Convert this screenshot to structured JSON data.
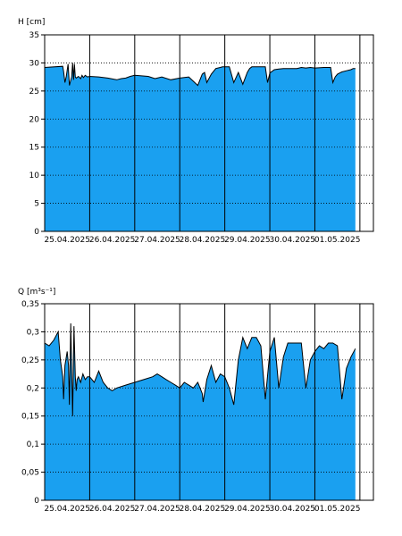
{
  "chart_data": [
    {
      "type": "area",
      "ylabel": "H [cm]",
      "ylim": [
        0,
        35
      ],
      "yticks": [
        0,
        5,
        10,
        15,
        20,
        25,
        30,
        35
      ],
      "ytick_labels": [
        "0",
        "5",
        "10",
        "15",
        "20",
        "25",
        "30",
        "35"
      ],
      "xlim": [
        0,
        7.3
      ],
      "xtick_labels": [
        "25.04.2025",
        "26.04.2025",
        "27.04.2025",
        "28.04.2025",
        "29.04.2025",
        "30.04.2025",
        "01.05.2025"
      ],
      "grid": true,
      "fill_color": "#1aa0f0",
      "x": [
        0,
        0.4,
        0.42,
        0.45,
        0.48,
        0.52,
        0.55,
        0.6,
        0.62,
        0.64,
        0.66,
        0.68,
        0.7,
        0.75,
        0.8,
        0.83,
        0.86,
        0.9,
        0.95,
        1.0,
        1.2,
        1.4,
        1.6,
        1.7,
        1.8,
        1.9,
        2.0,
        2.3,
        2.45,
        2.6,
        2.8,
        3.0,
        3.2,
        3.4,
        3.5,
        3.55,
        3.6,
        3.7,
        3.8,
        3.9,
        3.95,
        4.0,
        4.1,
        4.2,
        4.3,
        4.4,
        4.5,
        4.55,
        4.6,
        4.7,
        4.8,
        4.9,
        4.95,
        5.0,
        5.1,
        5.2,
        5.3,
        5.4,
        5.45,
        5.5,
        5.6,
        5.7,
        5.8,
        5.9,
        6.0,
        6.2,
        6.35,
        6.4,
        6.45,
        6.5,
        6.6,
        6.7,
        6.8,
        6.85,
        6.9
      ],
      "values": [
        29.2,
        29.4,
        28.5,
        26.5,
        27.6,
        29.8,
        26,
        27.5,
        30,
        27,
        29.8,
        27.5,
        27.3,
        27.6,
        27.2,
        27.8,
        27.4,
        27.8,
        27.5,
        27.6,
        27.5,
        27.3,
        27.0,
        27.2,
        27.3,
        27.6,
        27.8,
        27.6,
        27.2,
        27.5,
        27.0,
        27.3,
        27.5,
        26.0,
        28.0,
        28.3,
        26.5,
        28.0,
        29.0,
        29.2,
        29.3,
        29.3,
        29.3,
        26.5,
        28.3,
        26.2,
        28.3,
        29.0,
        29.3,
        29.3,
        29.3,
        29.3,
        26.5,
        28.2,
        28.8,
        28.9,
        29.0,
        29.0,
        29.0,
        29.0,
        29.0,
        29.2,
        29.1,
        29.2,
        29.1,
        29.2,
        29.2,
        26.5,
        27.5,
        28.0,
        28.4,
        28.6,
        28.8,
        29.0,
        29.0
      ]
    },
    {
      "type": "area",
      "ylabel": "Q [m³s⁻¹]",
      "ylim": [
        0,
        0.35
      ],
      "yticks": [
        0,
        0.05,
        0.1,
        0.15,
        0.2,
        0.25,
        0.3,
        0.35
      ],
      "ytick_labels": [
        "0",
        "0,05",
        "0,1",
        "0,15",
        "0,2",
        "0,25",
        "0,3",
        "0,35"
      ],
      "xlim": [
        0,
        7.3
      ],
      "xtick_labels": [
        "25.04.2025",
        "26.04.2025",
        "27.04.2025",
        "28.04.2025",
        "29.04.2025",
        "30.04.2025",
        "01.05.2025"
      ],
      "grid": true,
      "fill_color": "#1aa0f0",
      "x": [
        0,
        0.1,
        0.2,
        0.3,
        0.35,
        0.4,
        0.42,
        0.45,
        0.5,
        0.53,
        0.55,
        0.58,
        0.62,
        0.65,
        0.68,
        0.7,
        0.72,
        0.75,
        0.8,
        0.85,
        0.9,
        0.95,
        1.0,
        1.1,
        1.2,
        1.3,
        1.4,
        1.5,
        1.6,
        1.8,
        2.0,
        2.2,
        2.4,
        2.5,
        2.6,
        2.7,
        2.8,
        2.9,
        3.0,
        3.1,
        3.2,
        3.3,
        3.4,
        3.5,
        3.52,
        3.6,
        3.7,
        3.8,
        3.9,
        4.0,
        4.1,
        4.2,
        4.3,
        4.4,
        4.5,
        4.6,
        4.7,
        4.8,
        4.9,
        5.0,
        5.1,
        5.2,
        5.3,
        5.4,
        5.5,
        5.6,
        5.7,
        5.8,
        5.9,
        6.0,
        6.1,
        6.2,
        6.3,
        6.35,
        6.4,
        6.5,
        6.6,
        6.7,
        6.8,
        6.9
      ],
      "values": [
        0.28,
        0.275,
        0.285,
        0.3,
        0.25,
        0.22,
        0.18,
        0.24,
        0.265,
        0.24,
        0.17,
        0.315,
        0.15,
        0.31,
        0.22,
        0.195,
        0.215,
        0.22,
        0.21,
        0.225,
        0.215,
        0.22,
        0.22,
        0.21,
        0.23,
        0.21,
        0.2,
        0.195,
        0.2,
        0.205,
        0.21,
        0.215,
        0.22,
        0.225,
        0.22,
        0.215,
        0.21,
        0.205,
        0.2,
        0.21,
        0.205,
        0.2,
        0.21,
        0.19,
        0.175,
        0.215,
        0.24,
        0.21,
        0.225,
        0.22,
        0.2,
        0.17,
        0.25,
        0.29,
        0.27,
        0.29,
        0.29,
        0.275,
        0.18,
        0.265,
        0.29,
        0.2,
        0.255,
        0.28,
        0.28,
        0.28,
        0.28,
        0.2,
        0.25,
        0.265,
        0.275,
        0.27,
        0.28,
        0.28,
        0.28,
        0.275,
        0.18,
        0.235,
        0.255,
        0.27
      ]
    }
  ]
}
